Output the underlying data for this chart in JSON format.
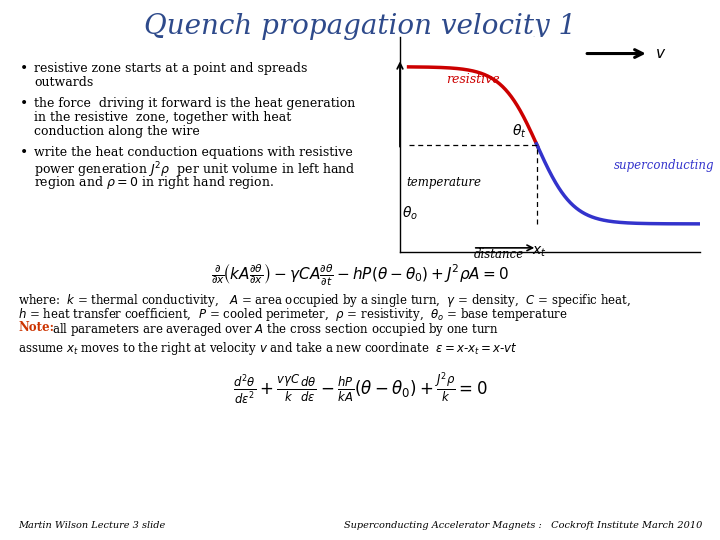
{
  "title": "Quench propagation velocity 1",
  "title_color": "#2E4A8B",
  "title_fontsize": 20,
  "bg_color": "#FFFFFF",
  "bullet_color": "#000000",
  "bullet_fontsize": 9.0,
  "curve_red_color": "#CC0000",
  "curve_blue_color": "#3333CC",
  "resistive_label_color": "#CC0000",
  "superconducting_label_color": "#3333CC",
  "footer_left": "Martin Wilson Lecture 3 slide",
  "footer_right": "Superconducting Accelerator Magnets :   Cockroft Institute March 2010",
  "footer_color": "#000000",
  "footer_fontsize": 7
}
